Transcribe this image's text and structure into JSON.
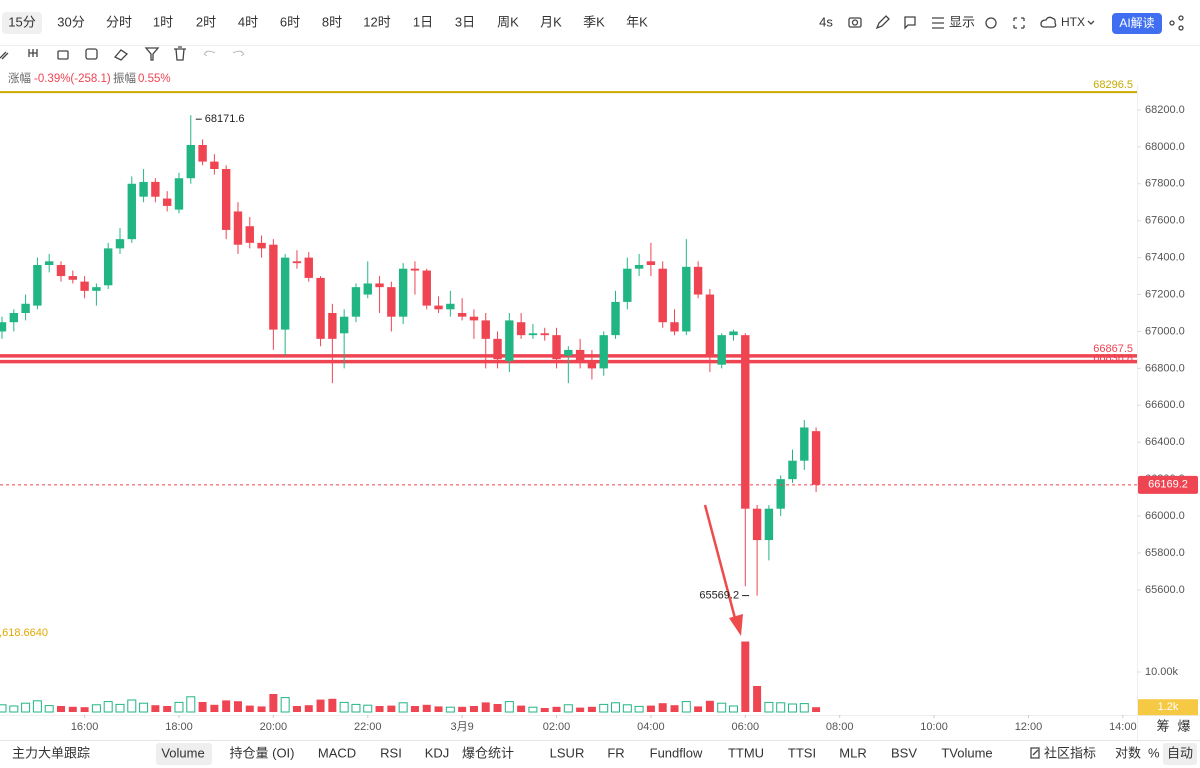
{
  "toolbar": {
    "timeframes": [
      "15分",
      "30分",
      "分时",
      "1时",
      "2时",
      "4时",
      "6时",
      "8时",
      "12时",
      "1日",
      "3日",
      "周K",
      "月K",
      "季K",
      "年K"
    ],
    "refresh": "4s",
    "display": "显示",
    "exchange": "HTX",
    "ai": "AI解读"
  },
  "info": {
    "change_label": "涨幅",
    "change": "-0.39%(-258.1)",
    "amplitude_label": "振幅",
    "amplitude": "0.55%"
  },
  "chart_data": {
    "type": "candlestick",
    "up_color": "#22b584",
    "down_color": "#ef4452",
    "open": [
      67000,
      67050,
      67100,
      67140,
      67360,
      67360,
      67300,
      67270,
      67220,
      67250,
      67450,
      67500,
      67730,
      67810,
      67720,
      67660,
      67830,
      68010,
      67920,
      67880,
      67650,
      67570,
      67480,
      67470,
      67010,
      67380,
      67400,
      67290,
      67100,
      66990,
      67080,
      67200,
      67260,
      67240,
      67080,
      67340,
      67330,
      67140,
      67120,
      67100,
      67080,
      67060,
      66960,
      66840,
      67050,
      66980,
      66990,
      66980,
      66870,
      66900,
      66840,
      66800,
      66980,
      67160,
      67340,
      67380,
      67340,
      67050,
      67000,
      67350,
      67200,
      66820,
      66980,
      66980,
      66040,
      65870,
      66040,
      66200,
      66300,
      66460
    ],
    "high": [
      67080,
      67120,
      67200,
      67400,
      67420,
      67380,
      67330,
      67300,
      67260,
      67480,
      67560,
      67840,
      67880,
      67830,
      67760,
      67860,
      68171.6,
      68040,
      67960,
      67900,
      67700,
      67620,
      67520,
      67500,
      67420,
      67440,
      67430,
      67300,
      67150,
      67120,
      67260,
      67380,
      67300,
      67270,
      67370,
      67380,
      67340,
      67190,
      67220,
      67180,
      67120,
      67100,
      67000,
      67100,
      67100,
      67040,
      67020,
      67020,
      66920,
      66960,
      66900,
      67000,
      67220,
      67400,
      67420,
      67480,
      67380,
      67120,
      67500,
      67380,
      67230,
      66990,
      67010,
      66990,
      66060,
      66060,
      66220,
      66360,
      66520,
      66480
    ],
    "low": [
      66960,
      67000,
      67060,
      67120,
      67320,
      67270,
      67260,
      67180,
      67140,
      67230,
      67420,
      67480,
      67700,
      67700,
      67650,
      67640,
      67800,
      67900,
      67850,
      67500,
      67420,
      67450,
      67400,
      66900,
      66870,
      67340,
      67270,
      66920,
      66720,
      66800,
      67050,
      67180,
      67100,
      67000,
      67040,
      67200,
      67120,
      67100,
      67080,
      67060,
      66960,
      66800,
      66800,
      66780,
      66960,
      66960,
      66950,
      66800,
      66720,
      66800,
      66740,
      66760,
      66960,
      67120,
      67300,
      67300,
      67020,
      66980,
      66980,
      67180,
      66780,
      66800,
      66950,
      65620,
      65569.2,
      65760,
      66000,
      66180,
      66250,
      66130
    ],
    "close": [
      67050,
      67100,
      67150,
      67360,
      67380,
      67300,
      67280,
      67220,
      67240,
      67450,
      67500,
      67800,
      67810,
      67730,
      67680,
      67830,
      68010,
      67920,
      67880,
      67550,
      67470,
      67480,
      67450,
      67010,
      67400,
      67370,
      67290,
      66960,
      66960,
      67080,
      67240,
      67260,
      67240,
      67080,
      67340,
      67330,
      67140,
      67120,
      67150,
      67080,
      67060,
      66960,
      66850,
      67060,
      66980,
      66990,
      66980,
      66850,
      66900,
      66840,
      66800,
      66980,
      67160,
      67340,
      67360,
      67360,
      67050,
      67000,
      67350,
      67200,
      66860,
      66980,
      67000,
      66040,
      65870,
      66040,
      66200,
      66300,
      66480,
      66169.2
    ],
    "volume": [
      1800,
      1500,
      2200,
      2800,
      1600,
      1500,
      1300,
      1200,
      1800,
      2600,
      1900,
      3000,
      2200,
      1700,
      1500,
      2400,
      3800,
      2500,
      1800,
      2900,
      2700,
      1600,
      1400,
      4500,
      3600,
      1500,
      1700,
      3100,
      3300,
      2400,
      1900,
      1700,
      1500,
      1600,
      2300,
      1500,
      1800,
      1400,
      1200,
      1300,
      1500,
      2400,
      2000,
      2600,
      1600,
      1200,
      1000,
      1300,
      1800,
      1100,
      1300,
      1900,
      2300,
      1800,
      1400,
      1600,
      2200,
      1700,
      2600,
      1400,
      2800,
      2200,
      1500,
      17618.664,
      6500,
      2400,
      2300,
      2000,
      2100,
      1200
    ],
    "xlim": [
      -0.17,
      96.2
    ],
    "xticks": [
      {
        "value": 7,
        "label": "16:00"
      },
      {
        "value": 15,
        "label": "18:00"
      },
      {
        "value": 23,
        "label": "20:00"
      },
      {
        "value": 31,
        "label": "22:00"
      },
      {
        "value": 39,
        "label": "3月9"
      },
      {
        "value": 47,
        "label": "02:00"
      },
      {
        "value": 55,
        "label": "04:00"
      },
      {
        "value": 63,
        "label": "06:00"
      },
      {
        "value": 71,
        "label": "08:00"
      },
      {
        "value": 79,
        "label": "10:00"
      },
      {
        "value": 87,
        "label": "12:00"
      },
      {
        "value": 95,
        "label": "14:00"
      }
    ],
    "ylim": [
      65410,
      68335
    ],
    "yticks": [
      {
        "value": 68200,
        "label": "68200.0"
      },
      {
        "value": 68000,
        "label": "68000.0"
      },
      {
        "value": 67800,
        "label": "67800.0"
      },
      {
        "value": 67600,
        "label": "67600.0"
      },
      {
        "value": 67400,
        "label": "67400.0"
      },
      {
        "value": 67200,
        "label": "67200.0"
      },
      {
        "value": 67000,
        "label": "67000.0"
      },
      {
        "value": 66800,
        "label": "66800.0"
      },
      {
        "value": 66600,
        "label": "66600.0"
      },
      {
        "value": 66400,
        "label": "66400.0"
      },
      {
        "value": 66200,
        "label": "66200.0"
      },
      {
        "value": 66000,
        "label": "66000.0"
      },
      {
        "value": 65800,
        "label": "65800.0"
      },
      {
        "value": 65600,
        "label": "65600.0"
      }
    ],
    "volume_ylim": [
      0,
      18000
    ],
    "volume_yticks": [
      {
        "value": 10000,
        "label": "10.00k"
      }
    ],
    "volume_last": {
      "value": 1200,
      "label": "1.2k"
    },
    "volume_max_label": ",618.6640",
    "price_lines": [
      {
        "value": 68296.5,
        "color": "#c9a900"
      },
      {
        "value": 66867.5,
        "color": "#ef4452"
      },
      {
        "value": 66836.8,
        "color": "#ef4452"
      }
    ],
    "axis_extras": [
      "筹",
      "爆"
    ]
  },
  "bottom_bar": {
    "left": "主力大单跟踪",
    "tabs": [
      "Volume",
      "持仓量 (OI)",
      "MACD",
      "RSI",
      "KDJ",
      "爆仓统计",
      "LSUR",
      "FR",
      "Fundflow",
      "TTMU",
      "TTSI",
      "MLR",
      "BSV",
      "TVolume"
    ],
    "community": "社区指标",
    "log": "对数",
    "percent": "%",
    "auto": "自动"
  }
}
